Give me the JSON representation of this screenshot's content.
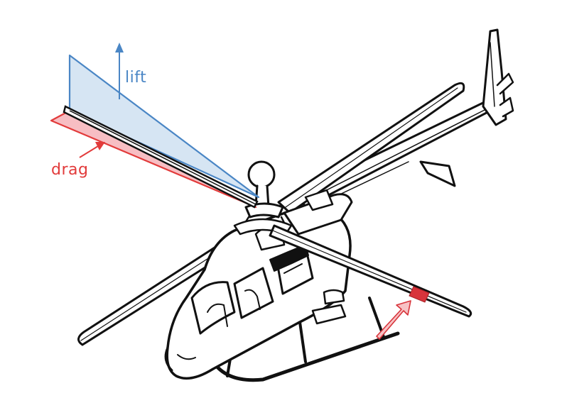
{
  "labels": {
    "lift": "lift",
    "drag": "drag"
  },
  "colors": {
    "lift": "#4a86c5",
    "lift_fill": "#cfe0f1",
    "drag": "#e23b3b",
    "drag_fill": "#f6b3b8",
    "section_highlight": "#d8343b",
    "callout_arrow_fill": "#f7c2c4",
    "callout_arrow_stroke": "#d8343b",
    "outline": "#111111"
  },
  "icons": {
    "subject": "helicopter",
    "callout": "arrow"
  }
}
